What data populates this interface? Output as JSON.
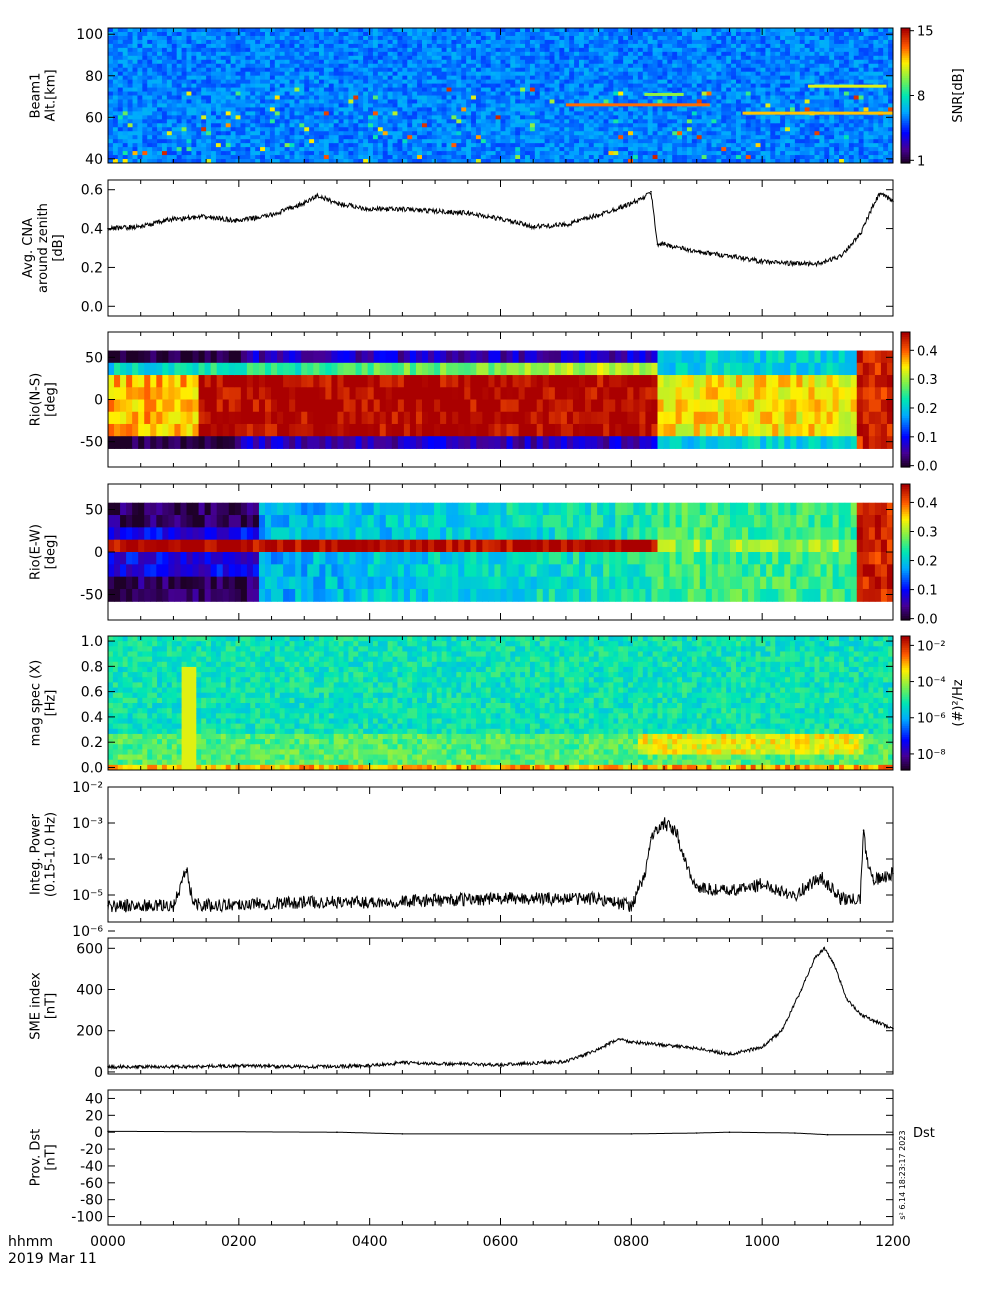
{
  "chart_data": [
    {
      "type": "heatmap",
      "ylabel_lines": [
        "Beam1",
        "Alt.[km]"
      ],
      "y_ticks": [
        40,
        60,
        80,
        100
      ],
      "ylim": [
        38,
        103
      ],
      "colorbar": {
        "label": "SNR[dB]",
        "ticks": [
          "1",
          "8",
          "15"
        ],
        "range": [
          1,
          15
        ]
      },
      "features": [
        {
          "t": [
            9.7,
            12.0
          ],
          "alt": 62,
          "snr": 12
        },
        {
          "t": [
            7.0,
            9.2
          ],
          "alt": 66,
          "snr": 13
        },
        {
          "t": [
            8.2,
            8.8
          ],
          "alt": 71,
          "snr": 10
        },
        {
          "t": [
            10.7,
            11.9
          ],
          "alt": 75,
          "snr": 11
        }
      ]
    },
    {
      "type": "line",
      "ylabel_lines": [
        "Avg. CNA",
        "around zenith",
        "[dB]"
      ],
      "y_ticks": [
        "0.0",
        "0.2",
        "0.4",
        "0.6"
      ],
      "ylim": [
        -0.05,
        0.65
      ],
      "x": [
        0,
        0.5,
        1.0,
        1.5,
        2.0,
        2.5,
        3.0,
        3.2,
        3.5,
        4.0,
        4.5,
        5.0,
        5.5,
        6.0,
        6.5,
        7.0,
        7.5,
        8.0,
        8.2,
        8.3,
        8.4,
        8.5,
        9.0,
        9.5,
        10.0,
        10.5,
        10.9,
        11.2,
        11.5,
        11.7,
        11.8,
        12.0
      ],
      "values": [
        0.4,
        0.41,
        0.45,
        0.46,
        0.44,
        0.47,
        0.53,
        0.57,
        0.53,
        0.5,
        0.5,
        0.49,
        0.48,
        0.45,
        0.41,
        0.42,
        0.47,
        0.53,
        0.56,
        0.59,
        0.32,
        0.32,
        0.28,
        0.26,
        0.23,
        0.22,
        0.22,
        0.26,
        0.37,
        0.52,
        0.58,
        0.54
      ]
    },
    {
      "type": "heatmap",
      "ylabel_lines": [
        "Rio(N-S)",
        "[deg]"
      ],
      "y_ticks": [
        "-50",
        "0",
        "50"
      ],
      "ylim": [
        -80,
        80
      ],
      "colorbar": {
        "label": "",
        "ticks": [
          "0.0",
          "0.1",
          "0.2",
          "0.3",
          "0.4"
        ],
        "range": [
          0,
          0.47
        ]
      }
    },
    {
      "type": "heatmap",
      "ylabel_lines": [
        "Rio(E-W)",
        "[deg]"
      ],
      "y_ticks": [
        "-50",
        "0",
        "50"
      ],
      "ylim": [
        -80,
        80
      ],
      "colorbar": {
        "label": "",
        "ticks": [
          "0.0",
          "0.1",
          "0.2",
          "0.3",
          "0.4"
        ],
        "range": [
          0,
          0.47
        ]
      }
    },
    {
      "type": "heatmap",
      "ylabel_lines": [
        "mag spec (X)",
        "[Hz]"
      ],
      "y_ticks": [
        "0.0",
        "0.2",
        "0.4",
        "0.6",
        "0.8",
        "1.0"
      ],
      "ylim": [
        -0.02,
        1.04
      ],
      "colorbar": {
        "label": "(#)²/Hz",
        "ticks": [
          "10⁻⁸",
          "10⁻⁶",
          "10⁻⁴",
          "10⁻²"
        ],
        "range": [
          -9,
          -1.5
        ]
      }
    },
    {
      "type": "line",
      "ylabel_lines": [
        "Integ. Power",
        "(0.15-1.0 Hz)"
      ],
      "y_ticks": [
        "10⁻⁶",
        "10⁻⁵",
        "10⁻⁴",
        "10⁻³",
        "10⁻²"
      ],
      "ylog": true,
      "ylim": [
        -5.75,
        -2
      ],
      "x": [
        0,
        1.0,
        1.2,
        1.3,
        1.5,
        2.0,
        3.0,
        4.0,
        5.0,
        6.0,
        7.0,
        7.5,
        8.0,
        8.2,
        8.3,
        8.5,
        8.7,
        8.8,
        9.0,
        9.5,
        10.0,
        10.5,
        10.9,
        11.2,
        11.5,
        11.55,
        11.6,
        11.7,
        12.0
      ],
      "values": [
        -5.3,
        -5.3,
        -4.3,
        -5.2,
        -5.3,
        -5.25,
        -5.2,
        -5.2,
        -5.15,
        -5.1,
        -5.1,
        -5.1,
        -5.3,
        -4.5,
        -3.4,
        -3.0,
        -3.3,
        -4.0,
        -4.8,
        -4.9,
        -4.7,
        -5.0,
        -4.5,
        -5.1,
        -5.15,
        -3.2,
        -4.0,
        -4.6,
        -4.4
      ]
    },
    {
      "type": "line",
      "ylabel_lines": [
        "SME index",
        "[nT]"
      ],
      "y_ticks": [
        "0",
        "200",
        "400",
        "600"
      ],
      "ylim": [
        -10,
        650
      ],
      "x": [
        0,
        1.0,
        2.0,
        3.0,
        4.0,
        4.5,
        5.0,
        6.0,
        7.0,
        7.5,
        7.8,
        8.0,
        8.5,
        9.0,
        9.5,
        10.0,
        10.3,
        10.6,
        10.8,
        10.95,
        11.1,
        11.3,
        11.5,
        11.7,
        12.0
      ],
      "values": [
        25,
        25,
        30,
        25,
        30,
        45,
        40,
        35,
        50,
        110,
        160,
        145,
        130,
        115,
        85,
        120,
        200,
        400,
        550,
        600,
        520,
        350,
        280,
        250,
        210
      ]
    },
    {
      "type": "line",
      "ylabel_lines": [
        "Prov. Dst",
        "[nT]"
      ],
      "y_ticks": [
        "-100",
        "-80",
        "-60",
        "-40",
        "-20",
        "0",
        "20",
        "40"
      ],
      "ylim": [
        -110,
        50
      ],
      "x": [
        0,
        3.5,
        4.5,
        8.0,
        9.0,
        9.5,
        10.5,
        11.0,
        12.0
      ],
      "values": [
        1,
        0,
        -2,
        -2,
        -1,
        0,
        -1,
        -3,
        -3
      ],
      "series_label": "Dst"
    }
  ],
  "x_axis": {
    "range": [
      0,
      12
    ],
    "tick_labels": [
      "0000",
      "0200",
      "0400",
      "0600",
      "0800",
      "1000",
      "1200"
    ],
    "unit_label": "hhmm",
    "date_label": "2019 Mar 11"
  },
  "stamp": "s² 6.14 18:23:17 2023"
}
